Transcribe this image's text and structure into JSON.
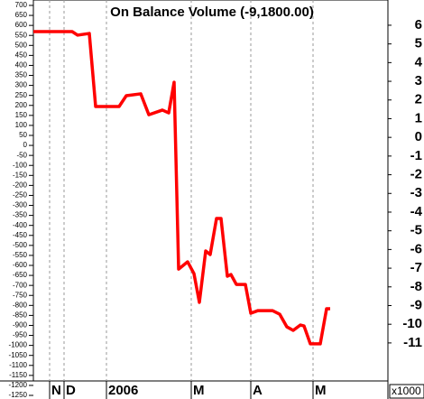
{
  "chart_data": {
    "type": "line",
    "title": "On Balance Volume (-9,1800.00)",
    "x": [
      0,
      43,
      49,
      62,
      69,
      75,
      95,
      103,
      119,
      128,
      143,
      150,
      156,
      161,
      171,
      178,
      184,
      191,
      196,
      203,
      208,
      215,
      219,
      225,
      235,
      241,
      249,
      265,
      273,
      281,
      288,
      296,
      300,
      307,
      318,
      325,
      329
    ],
    "series": [
      {
        "color": "#ff0000",
        "values": [
          5.66,
          5.66,
          5.47,
          5.56,
          1.65,
          1.65,
          1.65,
          2.23,
          2.33,
          1.21,
          1.46,
          1.31,
          2.95,
          -7.05,
          -6.66,
          -7.29,
          -8.83,
          -6.08,
          -6.27,
          -4.34,
          -4.34,
          -7.43,
          -7.34,
          -7.87,
          -7.87,
          -9.41,
          -9.27,
          -9.27,
          -9.46,
          -10.14,
          -10.33,
          -10.04,
          -10.09,
          -11.05,
          -11.05,
          -9.17,
          -9.17
        ]
      }
    ],
    "xlim": [
      0,
      393
    ],
    "xticks": [
      {
        "value": 18,
        "label": "N"
      },
      {
        "value": 34,
        "label": "D"
      },
      {
        "value": 81,
        "label": "2006"
      },
      {
        "value": 175,
        "label": "M"
      },
      {
        "value": 241,
        "label": "A"
      },
      {
        "value": 310,
        "label": "M"
      }
    ],
    "ylim": [
      -14,
      7.35
    ],
    "yticks": [
      6,
      5,
      4,
      3,
      2,
      1,
      0,
      -1,
      -2,
      -3,
      -4,
      -5,
      -6,
      -7,
      -8,
      -9,
      -10,
      -11
    ],
    "y_multiplier": "x1000",
    "y2lim": [
      -1268,
      727
    ],
    "y2ticks": [
      700,
      650,
      600,
      550,
      500,
      450,
      400,
      350,
      300,
      250,
      200,
      150,
      100,
      50,
      0,
      -50,
      -100,
      -150,
      -200,
      -250,
      -300,
      -350,
      -400,
      -450,
      -500,
      -550,
      -600,
      -650,
      -700,
      -750,
      -800,
      -850,
      -900,
      -950,
      -1000,
      -1050,
      -1100,
      -1150,
      -1200,
      -1250
    ],
    "x_grid": true
  }
}
